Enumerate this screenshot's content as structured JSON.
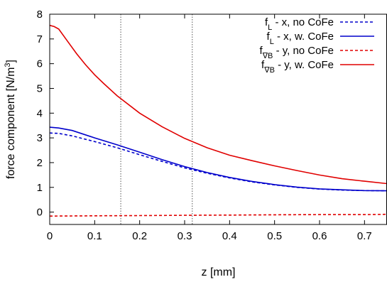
{
  "chart_data": {
    "type": "line",
    "xlabel": "z [mm]",
    "ylabel_main": "force component [N/m",
    "ylabel_sup": "3",
    "ylabel_end": "]",
    "xlim": [
      0,
      0.75
    ],
    "ylim": [
      -0.5,
      8
    ],
    "xticks": [
      0,
      0.1,
      0.2,
      0.3,
      0.4,
      0.5,
      0.6,
      0.7
    ],
    "xtick_labels": [
      "0",
      "0.1",
      "0.2",
      "0.3",
      "0.4",
      "0.5",
      "0.6",
      "0.7"
    ],
    "yticks": [
      0,
      1,
      2,
      3,
      4,
      5,
      6,
      7,
      8
    ],
    "ytick_labels": [
      "0",
      "1",
      "2",
      "3",
      "4",
      "5",
      "6",
      "7",
      "8"
    ],
    "vlines": [
      0.158,
      0.317
    ],
    "legend_position": "top-right",
    "grid": false,
    "series": [
      {
        "legend_main": "f",
        "legend_sub": "L",
        "legend_rest": " - x, no CoFe",
        "color": "#0000cc",
        "dash": "dashed",
        "x": [
          0,
          0.02,
          0.05,
          0.1,
          0.15,
          0.2,
          0.25,
          0.3,
          0.35,
          0.4,
          0.45,
          0.5,
          0.55,
          0.6,
          0.65,
          0.7,
          0.75
        ],
        "y": [
          3.2,
          3.18,
          3.08,
          2.85,
          2.6,
          2.32,
          2.05,
          1.79,
          1.57,
          1.38,
          1.22,
          1.1,
          1.0,
          0.93,
          0.89,
          0.87,
          0.86
        ]
      },
      {
        "legend_main": "f",
        "legend_sub": "L",
        "legend_rest": " - x, w. CoFe",
        "color": "#0000cc",
        "dash": "solid",
        "x": [
          0,
          0.02,
          0.05,
          0.1,
          0.15,
          0.2,
          0.25,
          0.3,
          0.35,
          0.4,
          0.45,
          0.5,
          0.55,
          0.6,
          0.65,
          0.7,
          0.75
        ],
        "y": [
          3.43,
          3.4,
          3.3,
          3.0,
          2.72,
          2.42,
          2.12,
          1.84,
          1.6,
          1.4,
          1.24,
          1.11,
          1.01,
          0.94,
          0.9,
          0.87,
          0.86
        ]
      },
      {
        "legend_main": "f",
        "legend_sub": "∇B",
        "legend_rest": " - y, no CoFe",
        "color": "#e00000",
        "dash": "dashed",
        "x": [
          0,
          0.1,
          0.2,
          0.3,
          0.4,
          0.5,
          0.6,
          0.7,
          0.75
        ],
        "y": [
          -0.16,
          -0.15,
          -0.14,
          -0.13,
          -0.12,
          -0.11,
          -0.1,
          -0.1,
          -0.09
        ]
      },
      {
        "legend_main": "f",
        "legend_sub": "∇B",
        "legend_rest": " - y, w. CoFe",
        "color": "#e00000",
        "dash": "solid",
        "x": [
          0,
          0.01,
          0.02,
          0.04,
          0.06,
          0.08,
          0.1,
          0.12,
          0.15,
          0.2,
          0.25,
          0.3,
          0.35,
          0.4,
          0.45,
          0.5,
          0.55,
          0.6,
          0.65,
          0.7,
          0.75
        ],
        "y": [
          7.55,
          7.5,
          7.4,
          6.9,
          6.4,
          5.95,
          5.55,
          5.2,
          4.7,
          4.0,
          3.45,
          2.98,
          2.6,
          2.3,
          2.08,
          1.87,
          1.68,
          1.5,
          1.35,
          1.25,
          1.15
        ]
      }
    ]
  }
}
